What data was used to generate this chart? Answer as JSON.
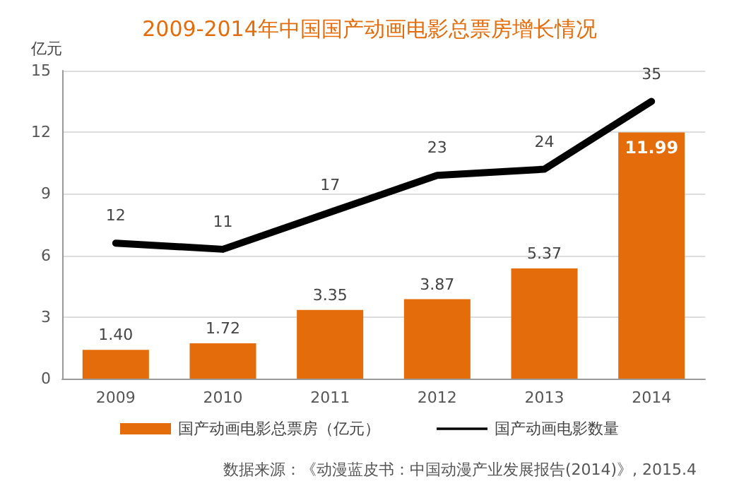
{
  "chart_data": {
    "type": "bar",
    "title": "2009-2014年中国国产动画电影总票房增长情况",
    "ylabel": "亿元",
    "categories": [
      "2009",
      "2010",
      "2011",
      "2012",
      "2013",
      "2014"
    ],
    "series": [
      {
        "name": "国产动画电影总票房（亿元）",
        "color": "#e46c0a",
        "values": [
          1.4,
          1.72,
          3.35,
          3.87,
          5.37,
          11.99
        ],
        "value_labels": [
          "1.40",
          "1.72",
          "3.35",
          "3.87",
          "5.37",
          "11.99"
        ]
      },
      {
        "name": "国产动画电影数量",
        "type": "line",
        "axis": "y2",
        "color": "#000000",
        "values": [
          12,
          11,
          17,
          23,
          24,
          35
        ],
        "value_labels": [
          "12",
          "11",
          "17",
          "23",
          "24",
          "35"
        ]
      }
    ],
    "ylim": [
      0,
      15
    ],
    "yticks": [
      0,
      3,
      6,
      9,
      12,
      15
    ],
    "y2lim": [
      -10,
      40
    ],
    "grid": "y",
    "legend": "bottom",
    "marker": "none",
    "line_style": "solid",
    "annotations": [
      "数据来源：《动漫蓝皮书：中国动漫产业发展报告(2014)》, 2015.4"
    ]
  }
}
